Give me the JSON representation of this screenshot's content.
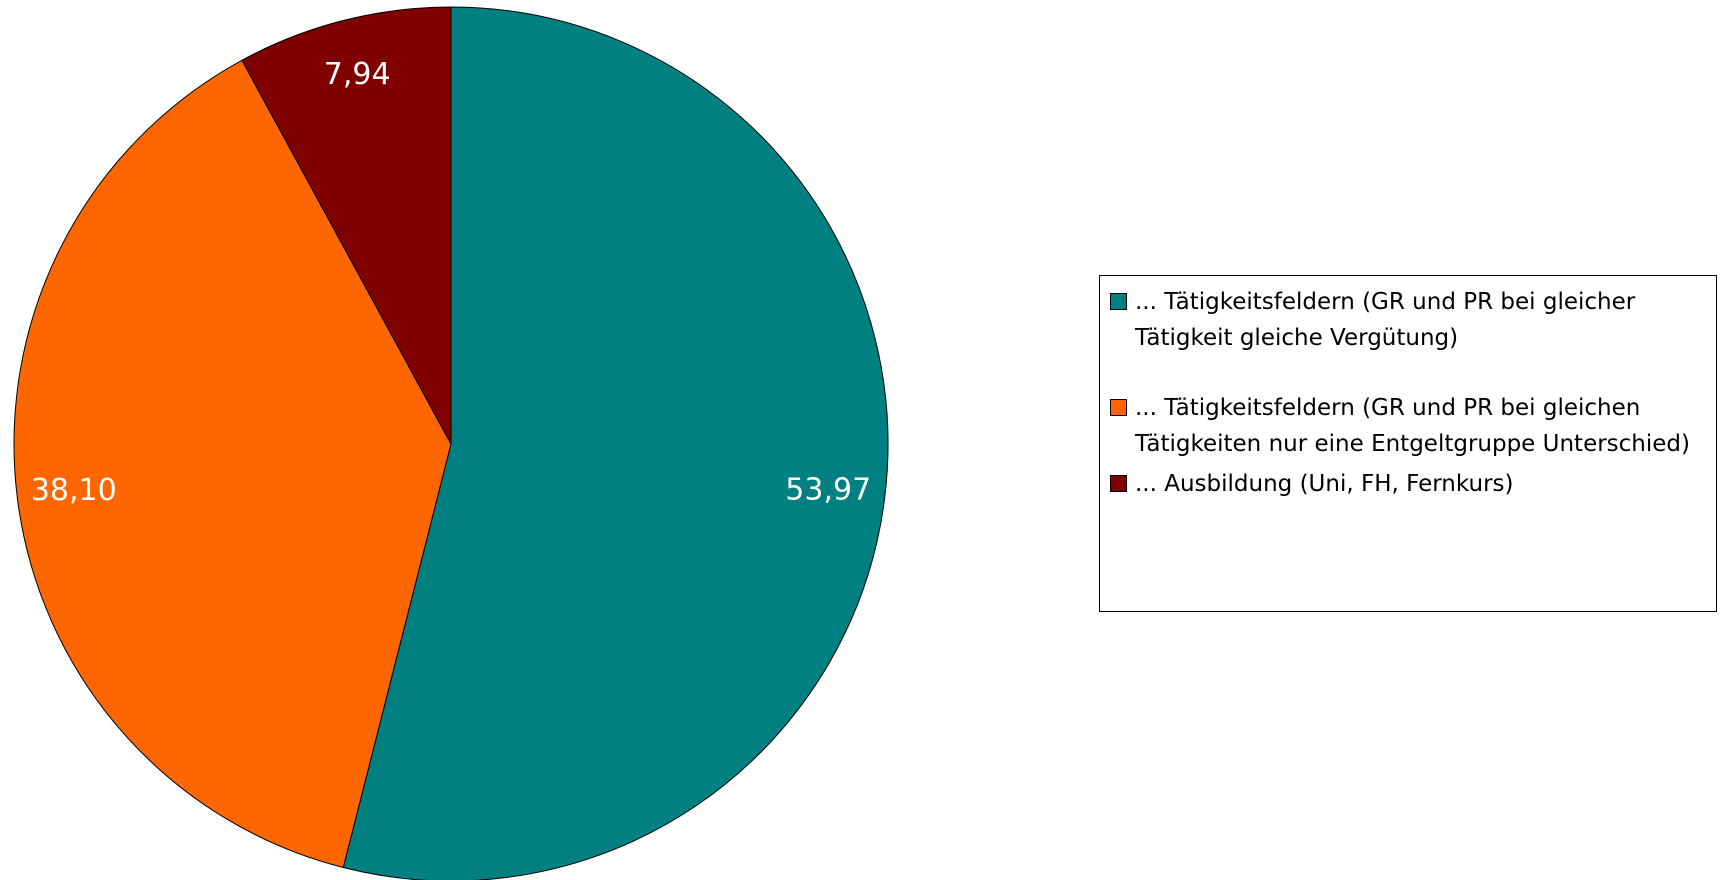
{
  "chart_data": {
    "type": "pie",
    "categories": [
      "... Tätigkeitsfeldern (GR und PR bei gleicher Tätigkeit gleiche Vergütung)",
      "... Tätigkeitsfeldern (GR und PR bei gleichen Tätigkeiten nur eine Entgeltgruppe Unterschied)",
      "... Ausbildung (Uni, FH, Fernkurs)"
    ],
    "values": [
      53.97,
      38.1,
      7.94
    ],
    "value_labels": [
      "53,97",
      "38,10",
      "7,94"
    ],
    "colors": [
      "#008080",
      "#ff6600",
      "#800000"
    ]
  }
}
